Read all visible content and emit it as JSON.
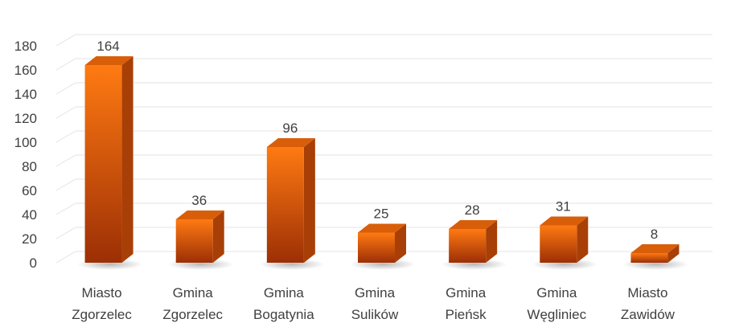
{
  "chart_data": {
    "type": "bar",
    "title": "",
    "xlabel": "",
    "ylabel": "",
    "ylim": [
      0,
      180
    ],
    "yticks": [
      0,
      20,
      40,
      60,
      80,
      100,
      120,
      140,
      160,
      180
    ],
    "grid": true,
    "legend": "none",
    "style": "3d-column",
    "categories": [
      [
        "Miasto",
        "Zgorzelec"
      ],
      [
        "Gmina",
        "Zgorzelec"
      ],
      [
        "Gmina",
        "Bogatynia"
      ],
      [
        "Gmina",
        "Sulików"
      ],
      [
        "Gmina",
        "Pieńsk"
      ],
      [
        "Gmina",
        "Węgliniec"
      ],
      [
        "Miasto",
        "Zawidów"
      ]
    ],
    "values": [
      164,
      36,
      96,
      25,
      28,
      31,
      8
    ],
    "data_labels": [
      "164",
      "36",
      "96",
      "25",
      "28",
      "31",
      "8"
    ],
    "colors": {
      "front_top": "#ff7a12",
      "front_bottom": "#9c2f05",
      "side": "#a83f06",
      "top": "#d95e0a"
    }
  }
}
